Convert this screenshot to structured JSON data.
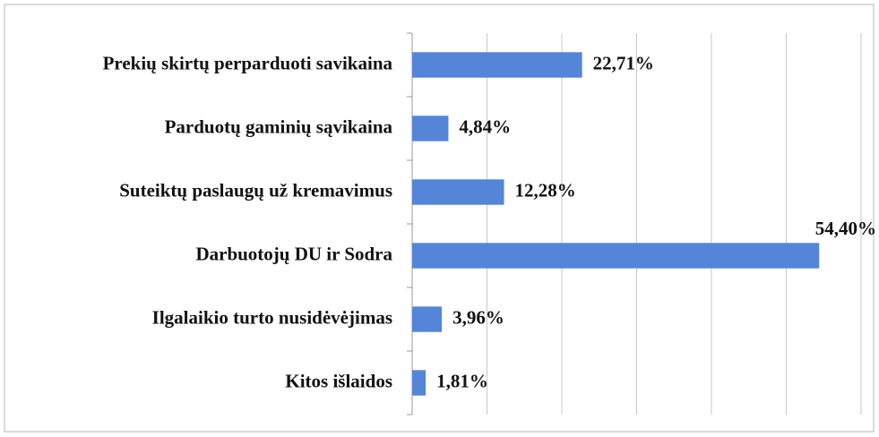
{
  "chart_data": {
    "type": "barh",
    "categories": [
      "Prekių skirtų perparduoti savikaina",
      "Parduotų gaminių sąvikaina",
      "Suteiktų paslaugų už kremavimus",
      "Darbuotojų DU ir Sodra",
      "Ilgalaikio turto nusidėvėjimas",
      "Kitos išlaidos"
    ],
    "values": [
      22.71,
      4.84,
      12.28,
      54.4,
      3.96,
      1.81
    ],
    "value_labels": [
      "22,71%",
      "4,84%",
      "12,28%",
      "54,40%",
      "3,96%",
      "1,81%"
    ],
    "color": "#5585d8",
    "xlim": [
      0,
      60
    ],
    "xticks": [
      0,
      10,
      20,
      30,
      40,
      50,
      60
    ],
    "grid": true
  }
}
